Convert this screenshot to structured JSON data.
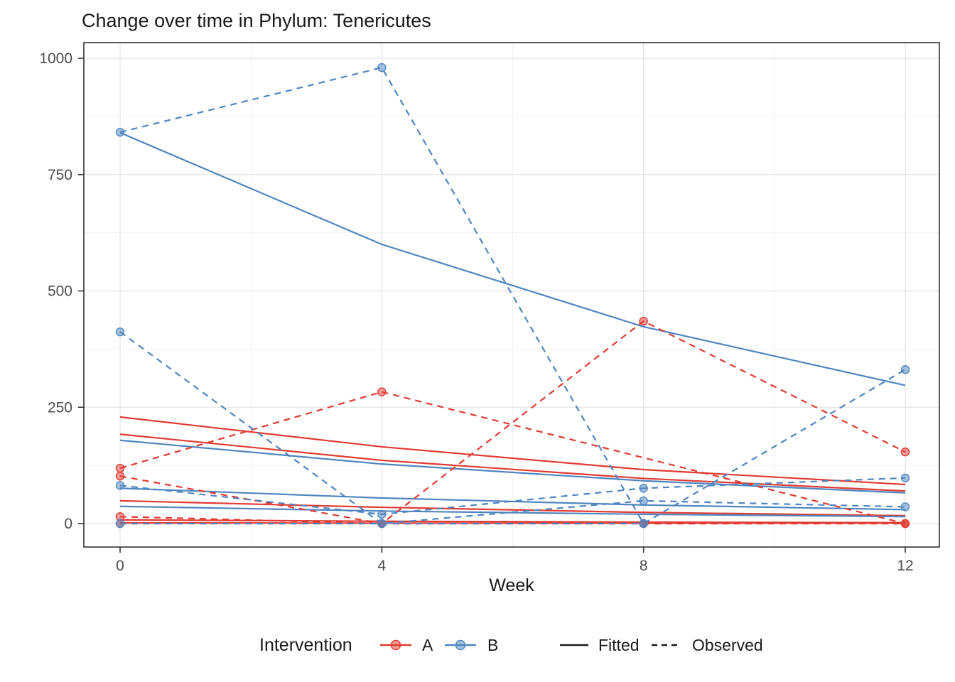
{
  "chart_data": {
    "type": "line",
    "title": "Change over time in Phylum: Tenericutes",
    "xlabel": "Week",
    "ylabel": "",
    "x_ticks": [
      0,
      4,
      8,
      12
    ],
    "x_minor": [
      2,
      6,
      10
    ],
    "y_ticks": [
      0,
      250,
      500,
      750,
      1000
    ],
    "y_minor": [
      125,
      375,
      625,
      875
    ],
    "xlim": [
      -0.55,
      12.55
    ],
    "ylim": [
      -50,
      1040
    ],
    "grid": true,
    "weeks": [
      0,
      4,
      8,
      12
    ],
    "groups": {
      "A": {
        "color": "#e13b32"
      },
      "B": {
        "color": "#4f86c0"
      }
    },
    "fitted_series": [
      {
        "name": "A-fit-1",
        "group": "A",
        "values": [
          229,
          165,
          116,
          84
        ]
      },
      {
        "name": "A-fit-2",
        "group": "A",
        "values": [
          192,
          136,
          97,
          70
        ]
      },
      {
        "name": "A-fit-3",
        "group": "A",
        "values": [
          49,
          35,
          24,
          17
        ]
      },
      {
        "name": "A-fit-4",
        "group": "A",
        "values": [
          8,
          5,
          3,
          2
        ]
      },
      {
        "name": "A-fit-5",
        "group": "A",
        "values": [
          1.5,
          1,
          1,
          1
        ]
      },
      {
        "name": "B-fit-1",
        "group": "B",
        "values": [
          840,
          600,
          423,
          297
        ]
      },
      {
        "name": "B-fit-2",
        "group": "B",
        "values": [
          179,
          128,
          92,
          66
        ]
      },
      {
        "name": "B-fit-3",
        "group": "B",
        "values": [
          76,
          55,
          40,
          30
        ]
      },
      {
        "name": "B-fit-4",
        "group": "B",
        "values": [
          37,
          27,
          20,
          15
        ]
      }
    ],
    "observed_series": [
      {
        "name": "A-obs-1",
        "group": "A",
        "values": [
          119,
          283,
          null,
          0
        ]
      },
      {
        "name": "A-obs-2",
        "group": "A",
        "values": [
          102,
          0,
          435,
          154
        ]
      },
      {
        "name": "A-obs-3",
        "group": "A",
        "values": [
          15,
          0,
          0,
          0
        ]
      },
      {
        "name": "A-obs-4",
        "group": "A",
        "values": [
          0,
          0,
          0,
          0
        ]
      },
      {
        "name": "B-obs-1",
        "group": "B",
        "values": [
          841,
          980,
          0,
          331
        ]
      },
      {
        "name": "B-obs-2",
        "group": "B",
        "values": [
          412,
          0,
          49,
          36
        ]
      },
      {
        "name": "B-obs-3",
        "group": "B",
        "values": [
          82,
          20,
          76,
          98
        ]
      },
      {
        "name": "B-obs-4",
        "group": "B",
        "values": [
          0,
          0,
          0,
          null
        ]
      }
    ],
    "legend_position": "bottom"
  },
  "legend": {
    "intervention_label": "Intervention",
    "item_a_label": "A",
    "item_b_label": "B",
    "fitted_label": "Fitted",
    "observed_label": "Observed"
  },
  "colors": {
    "red": "#e13b32",
    "blue": "#4f86c0",
    "axis_text": "#4d4d4d",
    "panel_border": "#333333",
    "grid_major": "#e4e4e4",
    "grid_minor": "#f1f1f1",
    "legend_key": "#1a1a1a"
  }
}
